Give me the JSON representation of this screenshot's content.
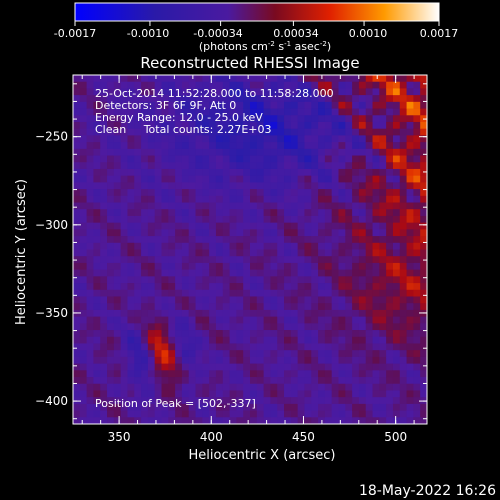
{
  "colorbar": {
    "ticks": [
      "-0.0017",
      "-0.0010",
      "-0.00034",
      "0.00034",
      "0.0010",
      "0.0017"
    ],
    "unit_label": "(photons cm",
    "unit_exp1": "-2",
    "unit_mid": " s",
    "unit_exp2": "-1",
    "unit_end": " asec",
    "unit_exp3": "-2",
    "unit_close": ")"
  },
  "footer": {
    "timestamp": "18-May-2022 16:26"
  },
  "chart_data": {
    "type": "heatmap",
    "title": "Reconstructed RHESSI Image",
    "xlabel": "Heliocentric X (arcsec)",
    "ylabel": "Heliocentric Y (arcsec)",
    "xlim": [
      325,
      517
    ],
    "ylim": [
      -413,
      -215
    ],
    "xticks": [
      350,
      400,
      450,
      500
    ],
    "yticks": [
      -250,
      -300,
      -350,
      -400
    ],
    "colorscale": {
      "min": -0.0017,
      "max": 0.0017
    },
    "info_lines": [
      "25-Oct-2014 11:52:28.000 to 11:58:28.000",
      "Detectors: 3F 6F 9F, Att 0",
      "Energy Range: 12.0 - 25.0 keV",
      "Clean     Total counts: 2.27E+03"
    ],
    "peak_text": "Position of Peak = [502,-337]",
    "peak": [
      502,
      -337
    ]
  }
}
